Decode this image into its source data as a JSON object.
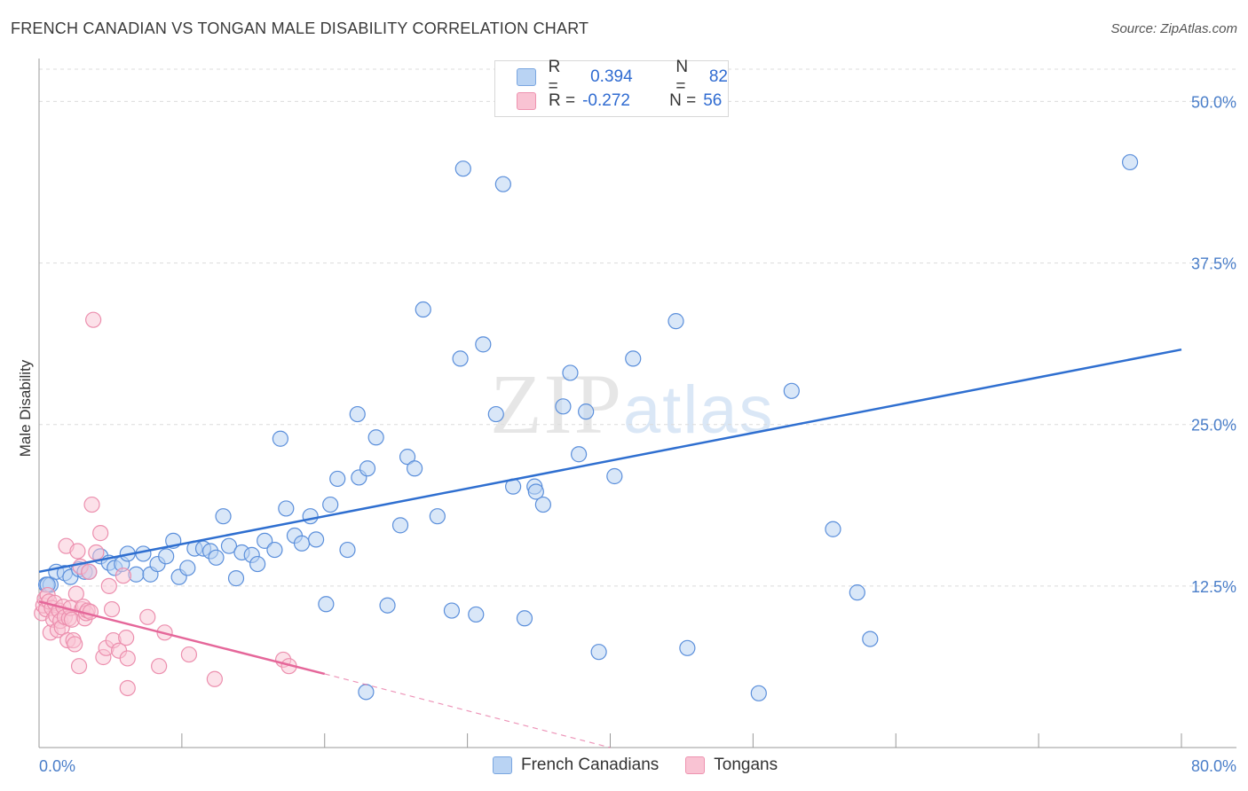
{
  "title": "FRENCH CANADIAN VS TONGAN MALE DISABILITY CORRELATION CHART",
  "source": "Source: ZipAtlas.com",
  "watermark": {
    "zip": "ZIP",
    "atlas": "atlas"
  },
  "legend": {
    "rows": [
      {
        "r_label": "R =",
        "r_value": "0.394",
        "n_label": "N =",
        "n_value": "82"
      },
      {
        "r_label": "R =",
        "r_value": "-0.272",
        "n_label": "N =",
        "n_value": "56"
      }
    ]
  },
  "bottom_legend": {
    "series1": "French Canadians",
    "series2": "Tongans"
  },
  "colors": {
    "blue_fill": "#b9d3f3",
    "blue_stroke": "#5b8fdb",
    "blue_line": "#2f6fd0",
    "pink_fill": "#f9c3d3",
    "pink_stroke": "#ec8fae",
    "pink_line": "#e5679a"
  },
  "chart_data": {
    "type": "scatter",
    "title": "FRENCH CANADIAN VS TONGAN MALE DISABILITY CORRELATION CHART",
    "xlabel": "",
    "ylabel": "Male Disability",
    "xlim": [
      0,
      80
    ],
    "ylim": [
      0,
      52.5
    ],
    "x_tick_labels": [
      "0.0%",
      "80.0%"
    ],
    "y_ticks": [
      12.5,
      25.0,
      37.5,
      50.0
    ],
    "y_tick_labels": [
      "12.5%",
      "25.0%",
      "37.5%",
      "50.0%"
    ],
    "grid": true,
    "legend_position": "top-center",
    "series": [
      {
        "name": "French Canadians",
        "color": "#5b8fdb",
        "r": 0.394,
        "n": 82,
        "trend": {
          "x": [
            0,
            80
          ],
          "y": [
            13.6,
            30.8
          ]
        },
        "points": [
          [
            0.5,
            12.6
          ],
          [
            0.8,
            12.6
          ],
          [
            1.2,
            13.6
          ],
          [
            1.8,
            13.5
          ],
          [
            2.2,
            13.2
          ],
          [
            2.8,
            13.8
          ],
          [
            3.2,
            13.6
          ],
          [
            3.5,
            13.6
          ],
          [
            4.3,
            14.8
          ],
          [
            4.9,
            14.3
          ],
          [
            5.3,
            13.9
          ],
          [
            5.8,
            14.2
          ],
          [
            6.2,
            15.0
          ],
          [
            6.8,
            13.4
          ],
          [
            7.3,
            15.0
          ],
          [
            7.8,
            13.4
          ],
          [
            8.3,
            14.2
          ],
          [
            8.9,
            14.8
          ],
          [
            9.4,
            16.0
          ],
          [
            9.8,
            13.2
          ],
          [
            10.4,
            13.9
          ],
          [
            10.9,
            15.4
          ],
          [
            11.5,
            15.4
          ],
          [
            12.0,
            15.2
          ],
          [
            12.4,
            14.7
          ],
          [
            12.9,
            17.9
          ],
          [
            13.3,
            15.6
          ],
          [
            13.8,
            13.1
          ],
          [
            14.2,
            15.1
          ],
          [
            14.9,
            14.9
          ],
          [
            15.3,
            14.2
          ],
          [
            15.8,
            16.0
          ],
          [
            16.5,
            15.3
          ],
          [
            16.9,
            23.9
          ],
          [
            17.3,
            18.5
          ],
          [
            17.9,
            16.4
          ],
          [
            18.4,
            15.8
          ],
          [
            19.0,
            17.9
          ],
          [
            19.4,
            16.1
          ],
          [
            20.1,
            11.1
          ],
          [
            20.4,
            18.8
          ],
          [
            20.9,
            20.8
          ],
          [
            21.6,
            15.3
          ],
          [
            22.3,
            25.8
          ],
          [
            22.4,
            20.9
          ],
          [
            23.0,
            21.6
          ],
          [
            22.9,
            4.3
          ],
          [
            23.6,
            24.0
          ],
          [
            24.4,
            11.0
          ],
          [
            25.3,
            17.2
          ],
          [
            25.8,
            22.5
          ],
          [
            26.3,
            21.6
          ],
          [
            26.9,
            33.9
          ],
          [
            27.9,
            17.9
          ],
          [
            28.9,
            10.6
          ],
          [
            29.5,
            30.1
          ],
          [
            29.7,
            44.8
          ],
          [
            30.6,
            10.3
          ],
          [
            31.1,
            31.2
          ],
          [
            32.0,
            25.8
          ],
          [
            32.5,
            43.6
          ],
          [
            33.2,
            20.2
          ],
          [
            34.0,
            10.0
          ],
          [
            34.7,
            20.2
          ],
          [
            34.8,
            19.8
          ],
          [
            35.3,
            18.8
          ],
          [
            36.7,
            26.4
          ],
          [
            37.2,
            29.0
          ],
          [
            37.8,
            22.7
          ],
          [
            38.3,
            26.0
          ],
          [
            39.2,
            7.4
          ],
          [
            40.3,
            21.0
          ],
          [
            41.6,
            30.1
          ],
          [
            44.6,
            33.0
          ],
          [
            45.4,
            7.7
          ],
          [
            50.4,
            4.2
          ],
          [
            52.7,
            27.6
          ],
          [
            55.6,
            16.9
          ],
          [
            57.3,
            12.0
          ],
          [
            58.2,
            8.4
          ],
          [
            76.4,
            45.3
          ],
          [
            0.6,
            12.6
          ]
        ]
      },
      {
        "name": "Tongans",
        "color": "#ec8fae",
        "r": -0.272,
        "n": 56,
        "trend": {
          "x": [
            0,
            20
          ],
          "y": [
            11.3,
            5.7
          ]
        },
        "trend_dashed": {
          "x": [
            20,
            40
          ],
          "y": [
            5.7,
            0.0
          ]
        },
        "points": [
          [
            0.2,
            10.4
          ],
          [
            0.3,
            11.0
          ],
          [
            0.4,
            11.5
          ],
          [
            0.5,
            10.7
          ],
          [
            0.6,
            11.8
          ],
          [
            0.7,
            11.3
          ],
          [
            0.8,
            8.9
          ],
          [
            0.9,
            10.8
          ],
          [
            1.0,
            9.9
          ],
          [
            1.1,
            11.2
          ],
          [
            1.2,
            10.2
          ],
          [
            1.3,
            9.1
          ],
          [
            1.4,
            10.6
          ],
          [
            1.5,
            9.8
          ],
          [
            1.6,
            9.3
          ],
          [
            1.7,
            10.9
          ],
          [
            1.8,
            10.1
          ],
          [
            1.9,
            15.6
          ],
          [
            2.0,
            8.3
          ],
          [
            2.1,
            10.0
          ],
          [
            2.2,
            10.8
          ],
          [
            2.3,
            9.9
          ],
          [
            2.4,
            8.3
          ],
          [
            2.5,
            8.0
          ],
          [
            2.6,
            11.9
          ],
          [
            2.7,
            15.2
          ],
          [
            2.8,
            6.3
          ],
          [
            2.9,
            14.0
          ],
          [
            3.0,
            10.7
          ],
          [
            3.1,
            10.9
          ],
          [
            3.2,
            10.0
          ],
          [
            3.3,
            10.4
          ],
          [
            3.4,
            10.6
          ],
          [
            3.5,
            13.6
          ],
          [
            3.6,
            10.5
          ],
          [
            3.7,
            18.8
          ],
          [
            4.0,
            15.1
          ],
          [
            4.3,
            16.6
          ],
          [
            4.5,
            7.0
          ],
          [
            4.7,
            7.7
          ],
          [
            4.9,
            12.5
          ],
          [
            5.1,
            10.7
          ],
          [
            5.2,
            8.3
          ],
          [
            5.6,
            7.5
          ],
          [
            5.9,
            13.3
          ],
          [
            6.1,
            8.5
          ],
          [
            6.2,
            6.9
          ],
          [
            6.2,
            4.6
          ],
          [
            7.6,
            10.1
          ],
          [
            8.4,
            6.3
          ],
          [
            8.8,
            8.9
          ],
          [
            10.5,
            7.2
          ],
          [
            12.3,
            5.3
          ],
          [
            17.1,
            6.8
          ],
          [
            17.5,
            6.3
          ],
          [
            3.8,
            33.1
          ]
        ]
      }
    ]
  }
}
